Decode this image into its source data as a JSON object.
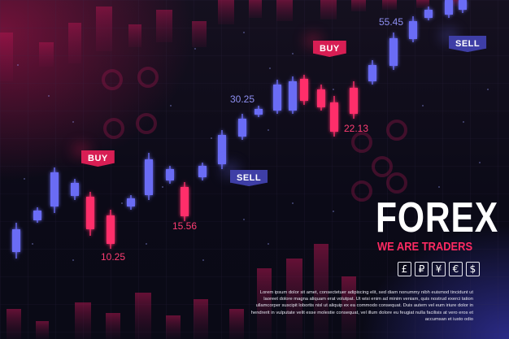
{
  "title": "FOREX",
  "subtitle": "WE ARE TRADERS",
  "currency_symbols": [
    "£",
    "₽",
    "¥",
    "€",
    "$"
  ],
  "body_text": "Lorem ipsum dolor sit amet, consectetuer adipiscing elit, sed diam nonummy nibh euismod tincidunt ut laoreet dolore magna aliquam erat volutpat. Ut wisi enim ad minim veniam, quis nostrud exerci tation ullamcorper suscipit lobortis nisl ut aliquip ex ea commodo consequat. Duis autem vel eum iriure dolor in hendrerit in vulputate velit esse molestie consequat, vel illum dolore eu feugiat nulla facilisis at vero eros et accumsan et iusto odio",
  "badges": [
    {
      "label": "BUY"
    },
    {
      "label": "BUY"
    },
    {
      "label": "SELL"
    },
    {
      "label": "SELL"
    }
  ],
  "price_labels": [
    {
      "text": "10.25"
    },
    {
      "text": "15.56"
    },
    {
      "text": "30.25"
    },
    {
      "text": "22.13"
    },
    {
      "text": "55.45"
    }
  ],
  "colors": {
    "bull": "#6a6cf5",
    "bear": "#ff2f6b",
    "accent": "#ff2a62",
    "text": "#ffffff"
  }
}
